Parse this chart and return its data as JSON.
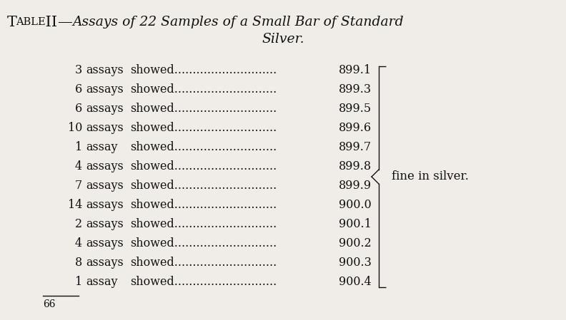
{
  "title_smallcaps": "Table II—",
  "title_italic1": "Assays of 22 Samples of a Small Bar of Standard",
  "title_italic2": "Silver.",
  "rows": [
    {
      "count": "3",
      "word": "assays",
      "value": "899.1"
    },
    {
      "count": "6",
      "word": "assays",
      "value": "899.3"
    },
    {
      "count": "6",
      "word": "assays",
      "value": "899.5"
    },
    {
      "count": "10",
      "word": "assays",
      "value": "899.6"
    },
    {
      "count": "1",
      "word": "assay",
      "value": "899.7"
    },
    {
      "count": "4",
      "word": "assays",
      "value": "899.8"
    },
    {
      "count": "7",
      "word": "assays",
      "value": "899.9"
    },
    {
      "count": "14",
      "word": "assays",
      "value": "900.0"
    },
    {
      "count": "2",
      "word": "assays",
      "value": "900.1"
    },
    {
      "count": "4",
      "word": "assays",
      "value": "900.2"
    },
    {
      "count": "8",
      "word": "assays",
      "value": "900.3"
    },
    {
      "count": "1",
      "word": "assay",
      "value": "900.4"
    }
  ],
  "brace_label": "fine in silver.",
  "footer": "66",
  "bg_color": "#f0ede8",
  "text_color": "#111111"
}
